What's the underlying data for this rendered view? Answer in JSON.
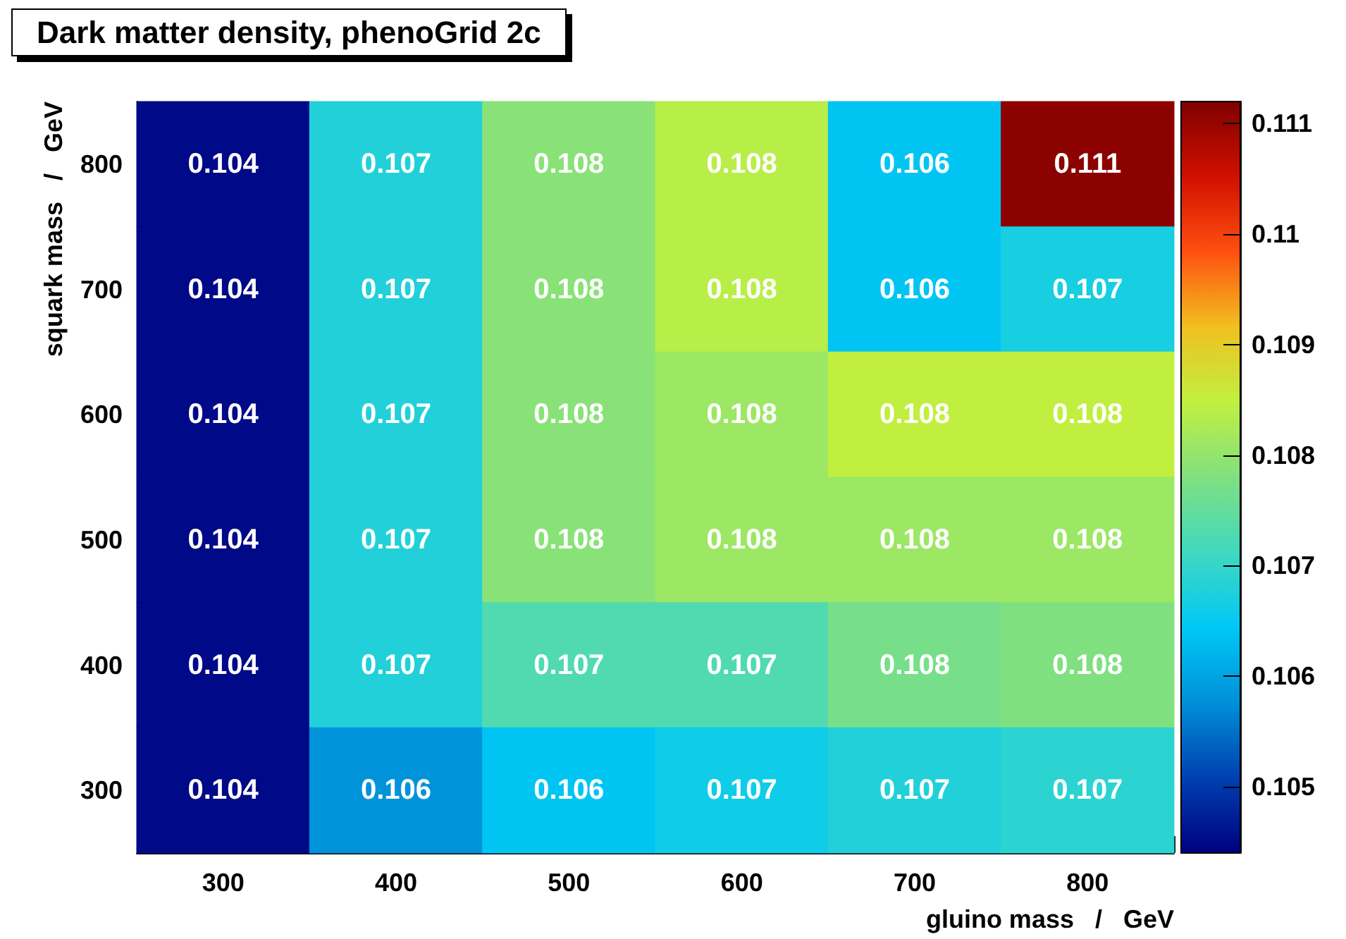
{
  "chart_data": {
    "type": "heatmap",
    "title": "Dark matter density, phenoGrid 2c",
    "xlabel": "gluino mass   /   GeV",
    "ylabel": "squark mass   /   GeV",
    "categories": [
      "300",
      "400",
      "500",
      "600",
      "700",
      "800"
    ],
    "y_categories": [
      "800",
      "700",
      "600",
      "500",
      "400",
      "300"
    ],
    "cells": [
      [
        0.1045,
        0.1068,
        0.1079,
        0.1084,
        0.1064,
        0.1111
      ],
      [
        0.1045,
        0.1068,
        0.1079,
        0.1084,
        0.1064,
        0.1067
      ],
      [
        0.1045,
        0.1068,
        0.1079,
        0.1081,
        0.1085,
        0.1085
      ],
      [
        0.1045,
        0.1068,
        0.1079,
        0.1081,
        0.1081,
        0.1081
      ],
      [
        0.1045,
        0.1068,
        0.1073,
        0.1073,
        0.1077,
        0.1078
      ],
      [
        0.1045,
        0.1058,
        0.1064,
        0.1066,
        0.1068,
        0.1069
      ]
    ],
    "cell_labels": [
      [
        "0.104",
        "0.107",
        "0.108",
        "0.108",
        "0.106",
        "0.111"
      ],
      [
        "0.104",
        "0.107",
        "0.108",
        "0.108",
        "0.106",
        "0.107"
      ],
      [
        "0.104",
        "0.107",
        "0.108",
        "0.108",
        "0.108",
        "0.108"
      ],
      [
        "0.104",
        "0.107",
        "0.108",
        "0.108",
        "0.108",
        "0.108"
      ],
      [
        "0.104",
        "0.107",
        "0.107",
        "0.107",
        "0.108",
        "0.108"
      ],
      [
        "0.104",
        "0.106",
        "0.106",
        "0.107",
        "0.107",
        "0.107"
      ]
    ],
    "clim": [
      0.1044,
      0.1112
    ],
    "cticks": [
      0.105,
      0.106,
      0.107,
      0.108,
      0.109,
      0.11,
      0.111
    ]
  }
}
